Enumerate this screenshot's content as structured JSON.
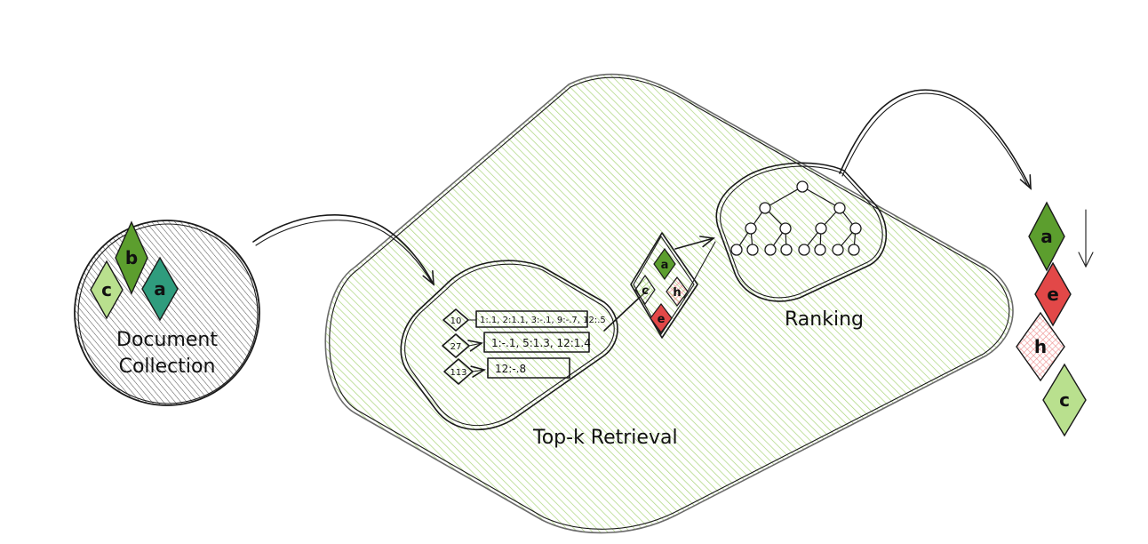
{
  "labels": {
    "collection": [
      "Document",
      "Collection"
    ],
    "retrieval": "Top-k Retrieval",
    "ranking": "Ranking"
  },
  "collection_docs": [
    "c",
    "b",
    "a"
  ],
  "index_entries": [
    {
      "term": "10",
      "postings": "1:.1, 2:1.1, 3:-.1, 9:-.7, 12:.5"
    },
    {
      "term": "27",
      "postings": "1:-.1, 5:1.3, 12:1.4"
    },
    {
      "term": "113",
      "postings": "12:-.8"
    }
  ],
  "candidates": [
    "a",
    "c",
    "h",
    "e"
  ],
  "ranked_output": [
    "a",
    "e",
    "h",
    "c"
  ],
  "colors": {
    "ink": "#1a1a1a",
    "region_hatch": "#a9d47a",
    "collection_hatch": "#555555",
    "green_dark": "#5c9e2e",
    "green_light": "#b9e08e",
    "teal": "#2f9c7d",
    "red": "#e24848",
    "pink": "#f3a5a5"
  }
}
